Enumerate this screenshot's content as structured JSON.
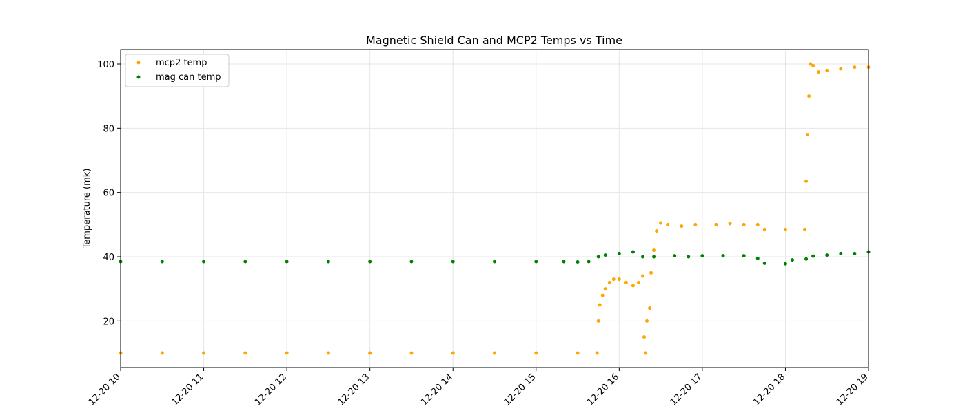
{
  "chart_data": {
    "type": "scatter",
    "title": "Magnetic Shield Can and MCP2 Temps vs Time",
    "xlabel": "",
    "ylabel": "Temperature (mk)",
    "x_type": "time",
    "xlim": [
      "2018-12-20 10:00",
      "2018-12-20 19:00"
    ],
    "ylim": [
      5.5,
      104.5
    ],
    "x_tick_labels": [
      "12-20 10",
      "12-20 11",
      "12-20 12",
      "12-20 13",
      "12-20 14",
      "12-20 15",
      "12-20 16",
      "12-20 17",
      "12-20 18",
      "12-20 19"
    ],
    "y_ticks": [
      20,
      40,
      60,
      80,
      100
    ],
    "grid": true,
    "legend_position": "top-left",
    "series": [
      {
        "name": "mcp2 temp",
        "color": "#ffa500",
        "points": [
          [
            "10:00",
            10
          ],
          [
            "10:30",
            10
          ],
          [
            "11:00",
            10
          ],
          [
            "11:30",
            10
          ],
          [
            "12:00",
            10
          ],
          [
            "12:30",
            10
          ],
          [
            "13:00",
            10
          ],
          [
            "13:30",
            10
          ],
          [
            "14:00",
            10
          ],
          [
            "14:30",
            10
          ],
          [
            "15:00",
            10
          ],
          [
            "15:30",
            10
          ],
          [
            "15:44",
            10
          ],
          [
            "15:45",
            20
          ],
          [
            "15:46",
            25
          ],
          [
            "15:48",
            28
          ],
          [
            "15:50",
            30
          ],
          [
            "15:53",
            32
          ],
          [
            "15:56",
            33
          ],
          [
            "16:00",
            33
          ],
          [
            "16:05",
            32
          ],
          [
            "16:10",
            31
          ],
          [
            "16:14",
            32
          ],
          [
            "16:17",
            34
          ],
          [
            "16:18",
            15
          ],
          [
            "16:19",
            10
          ],
          [
            "16:20",
            20
          ],
          [
            "16:22",
            24
          ],
          [
            "16:23",
            35
          ],
          [
            "16:25",
            42
          ],
          [
            "16:27",
            48
          ],
          [
            "16:30",
            50.5
          ],
          [
            "16:35",
            50
          ],
          [
            "16:45",
            49.5
          ],
          [
            "16:55",
            50
          ],
          [
            "17:10",
            50
          ],
          [
            "17:20",
            50.3
          ],
          [
            "17:30",
            50
          ],
          [
            "17:40",
            50
          ],
          [
            "17:45",
            48.5
          ],
          [
            "18:00",
            48.5
          ],
          [
            "18:14",
            48.5
          ],
          [
            "18:15",
            63.5
          ],
          [
            "18:16",
            78
          ],
          [
            "18:17",
            90
          ],
          [
            "18:18",
            100
          ],
          [
            "18:20",
            99.5
          ],
          [
            "18:24",
            97.5
          ],
          [
            "18:30",
            98
          ],
          [
            "18:40",
            98.5
          ],
          [
            "18:50",
            99
          ],
          [
            "19:00",
            99
          ]
        ]
      },
      {
        "name": "mag can temp",
        "color": "#008000",
        "points": [
          [
            "10:00",
            38.5
          ],
          [
            "10:30",
            38.5
          ],
          [
            "11:00",
            38.5
          ],
          [
            "11:30",
            38.5
          ],
          [
            "12:00",
            38.5
          ],
          [
            "12:30",
            38.5
          ],
          [
            "13:00",
            38.5
          ],
          [
            "13:30",
            38.5
          ],
          [
            "14:00",
            38.5
          ],
          [
            "14:30",
            38.5
          ],
          [
            "15:00",
            38.5
          ],
          [
            "15:20",
            38.5
          ],
          [
            "15:30",
            38.4
          ],
          [
            "15:38",
            38.5
          ],
          [
            "15:45",
            40
          ],
          [
            "15:50",
            40.5
          ],
          [
            "16:00",
            41
          ],
          [
            "16:10",
            41.5
          ],
          [
            "16:17",
            40
          ],
          [
            "16:25",
            40
          ],
          [
            "16:40",
            40.3
          ],
          [
            "16:50",
            40
          ],
          [
            "17:00",
            40.3
          ],
          [
            "17:15",
            40.3
          ],
          [
            "17:30",
            40.3
          ],
          [
            "17:40",
            39.5
          ],
          [
            "17:45",
            38
          ],
          [
            "18:00",
            37.8
          ],
          [
            "18:05",
            39
          ],
          [
            "18:15",
            39.3
          ],
          [
            "18:20",
            40.2
          ],
          [
            "18:30",
            40.5
          ],
          [
            "18:40",
            41
          ],
          [
            "18:50",
            41
          ],
          [
            "19:00",
            41.5
          ]
        ]
      }
    ]
  }
}
